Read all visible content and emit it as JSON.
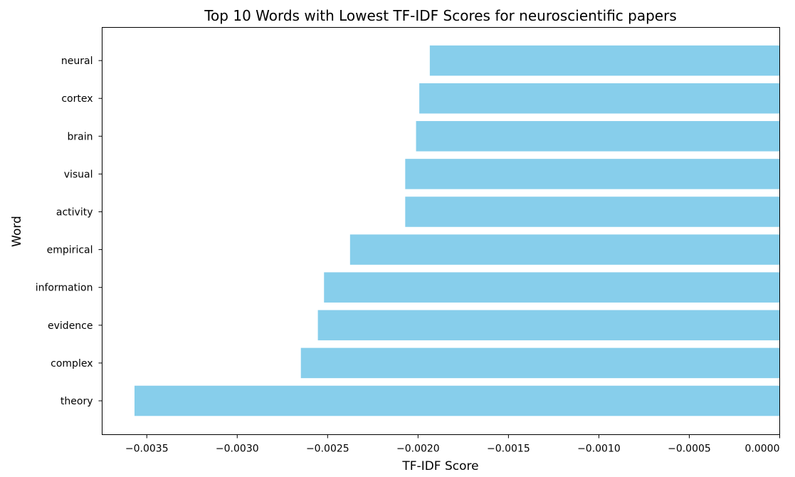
{
  "chart_data": {
    "type": "bar",
    "orientation": "horizontal",
    "title": "Top 10 Words with Lowest TF-IDF Scores for neuroscientific papers",
    "xlabel": "TF-IDF Score",
    "ylabel": "Word",
    "categories": [
      "theory",
      "complex",
      "evidence",
      "information",
      "empirical",
      "activity",
      "visual",
      "brain",
      "cortex",
      "neural"
    ],
    "values": [
      -0.003568,
      -0.002648,
      -0.002554,
      -0.00252,
      -0.002376,
      -0.002071,
      -0.002071,
      -0.002011,
      -0.001993,
      -0.001935
    ],
    "xlim": [
      -0.003747,
      0.0
    ],
    "xticks": [
      -0.0035,
      -0.003,
      -0.0025,
      -0.002,
      -0.0015,
      -0.001,
      -0.0005,
      0.0
    ],
    "xtick_labels": [
      "−0.0035",
      "−0.0030",
      "−0.0025",
      "−0.0020",
      "−0.0015",
      "−0.0010",
      "−0.0005",
      "0.0000"
    ],
    "bar_color": "#87ceeb",
    "grid": false,
    "legend": "none"
  }
}
